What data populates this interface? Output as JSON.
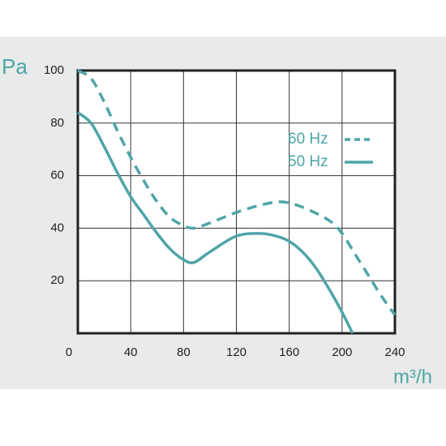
{
  "chart_data": {
    "type": "line",
    "y_label": "Pa",
    "x_label": "m³/h",
    "xlim": [
      0,
      240
    ],
    "xticks": [
      0,
      40,
      80,
      120,
      160,
      200,
      240
    ],
    "ylim": [
      0,
      100
    ],
    "yticks": [
      20,
      40,
      60,
      80,
      100
    ],
    "grid": true,
    "legend": "upper right",
    "series": [
      {
        "name": "60 Hz",
        "color": "#4ea5a6",
        "dash": "dashed",
        "x": [
          0,
          10,
          20,
          30,
          40,
          50,
          60,
          70,
          80,
          88,
          100,
          120,
          140,
          155,
          170,
          190,
          200,
          210,
          220,
          230,
          240
        ],
        "values": [
          100,
          97,
          88,
          77,
          67,
          58,
          50,
          44,
          41,
          40,
          42,
          46,
          49,
          50,
          48,
          43,
          38,
          30,
          22,
          14,
          7
        ]
      },
      {
        "name": "50 Hz",
        "color": "#4ea5a6",
        "dash": "solid",
        "x": [
          0,
          10,
          20,
          30,
          40,
          50,
          60,
          70,
          80,
          88,
          100,
          120,
          138,
          150,
          160,
          170,
          180,
          190,
          200,
          208
        ],
        "values": [
          84,
          80,
          71,
          61,
          52,
          45,
          38,
          32,
          28,
          27,
          31,
          37,
          38,
          37,
          35,
          31,
          25,
          17,
          8,
          0
        ]
      }
    ]
  }
}
